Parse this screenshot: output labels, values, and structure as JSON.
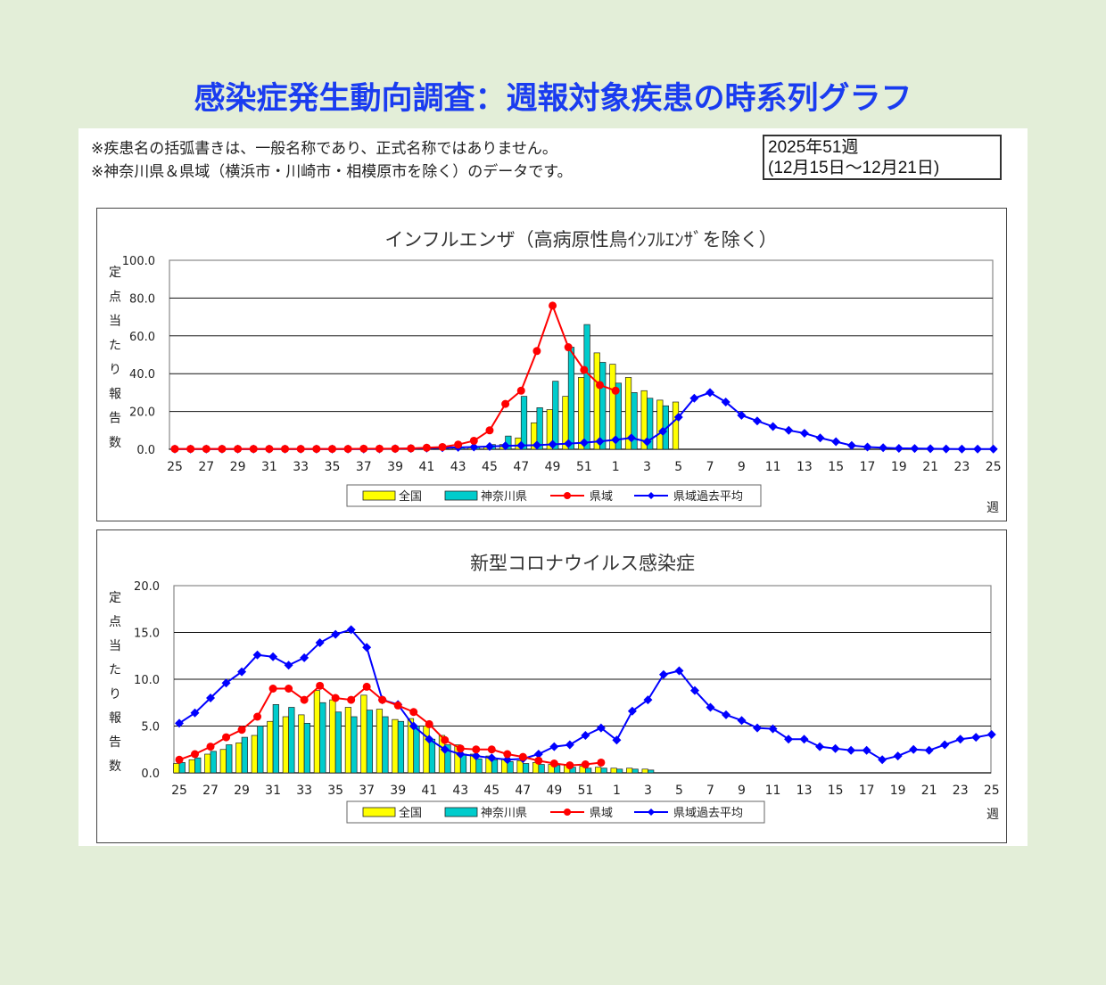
{
  "page": {
    "title": "感染症発生動向調査：週報対象疾患の時系列グラフ",
    "note1": "※疾患名の括弧書きは、一般名称であり、正式名称ではありません。",
    "note2": "※神奈川県＆県域（横浜市・川崎市・相模原市を除く）のデータです。",
    "week_line1": "2025年51週",
    "week_line2": "(12月15日～12月21日)"
  },
  "colors": {
    "zenkoku": "#ffff00",
    "kanagawa": "#00cccc",
    "kenniki": "#ff0000",
    "kako": "#0000ff"
  },
  "chart_data": [
    {
      "type": "bar",
      "title": "インフルエンザ（高病原性鳥ｲﾝﾌﾙｴﾝｻﾞを除く）",
      "ylabel": "定点当たり報告数",
      "xlabel": "週",
      "ylim": [
        0,
        100
      ],
      "yticks": [
        "100.0",
        "80.0",
        "60.0",
        "40.0",
        "20.0",
        "0.0"
      ],
      "xticks": [
        "25",
        "27",
        "29",
        "31",
        "33",
        "35",
        "37",
        "39",
        "41",
        "43",
        "45",
        "47",
        "49",
        "51",
        "1",
        "3",
        "5",
        "7",
        "9",
        "11",
        "13",
        "15",
        "17",
        "19",
        "21",
        "23",
        "25"
      ],
      "grid": true,
      "legend_position": "bottom",
      "series": [
        {
          "name": "全国",
          "kind": "bar",
          "values": [
            0.1,
            0.1,
            0.1,
            0.1,
            0.1,
            0.1,
            0.1,
            0.1,
            0.1,
            0.1,
            0.1,
            0.1,
            0.1,
            0.1,
            0.1,
            0.2,
            0.2,
            0.3,
            0.5,
            0.8,
            1.2,
            2.5,
            6.0,
            14.0,
            21.0,
            28.0,
            38.0,
            51.0,
            45.0,
            38.0,
            31.0,
            26.0,
            25.0
          ]
        },
        {
          "name": "神奈川県",
          "kind": "bar",
          "values": [
            0.1,
            0.1,
            0.1,
            0.1,
            0.1,
            0.1,
            0.1,
            0.1,
            0.1,
            0.1,
            0.1,
            0.1,
            0.1,
            0.1,
            0.1,
            0.2,
            0.2,
            0.4,
            0.8,
            1.5,
            2.5,
            7.0,
            28.0,
            22.0,
            36.0,
            54.0,
            66.0,
            46.0,
            35.0,
            30.0,
            27.0,
            23.0
          ]
        },
        {
          "name": "県域",
          "kind": "line",
          "values": [
            0.2,
            0.2,
            0.2,
            0.2,
            0.2,
            0.2,
            0.2,
            0.2,
            0.2,
            0.2,
            0.2,
            0.2,
            0.3,
            0.3,
            0.3,
            0.5,
            0.8,
            1.2,
            2.5,
            4.5,
            10.0,
            24.0,
            31.0,
            52.0,
            76.0,
            54.0,
            42.0,
            34.0,
            31.0
          ]
        },
        {
          "name": "県域過去平均",
          "kind": "line",
          "values": [
            0.1,
            0.1,
            0.1,
            0.1,
            0.1,
            0.1,
            0.1,
            0.1,
            0.1,
            0.1,
            0.1,
            0.1,
            0.1,
            0.2,
            0.3,
            0.4,
            0.6,
            0.8,
            1.0,
            1.2,
            1.5,
            1.8,
            2.0,
            2.2,
            2.6,
            3.0,
            3.5,
            4.2,
            5.0,
            6.0,
            4.0,
            9.5,
            17.0,
            27.0,
            30.0,
            25.0,
            18.0,
            15.0,
            12.0,
            10.0,
            8.5,
            6.0,
            4.0,
            2.0,
            1.2,
            0.8,
            0.5,
            0.4,
            0.3,
            0.2,
            0.1,
            0.1,
            0.1
          ]
        }
      ]
    },
    {
      "type": "bar",
      "title": "新型コロナウイルス感染症",
      "ylabel": "定点当たり報告数",
      "xlabel": "週",
      "ylim": [
        0,
        20
      ],
      "yticks": [
        "20.0",
        "15.0",
        "10.0",
        "5.0",
        "0.0"
      ],
      "xticks": [
        "25",
        "27",
        "29",
        "31",
        "33",
        "35",
        "37",
        "39",
        "41",
        "43",
        "45",
        "47",
        "49",
        "51",
        "1",
        "3",
        "5",
        "7",
        "9",
        "11",
        "13",
        "15",
        "17",
        "19",
        "21",
        "23",
        "25"
      ],
      "grid": true,
      "legend_position": "bottom",
      "series": [
        {
          "name": "全国",
          "kind": "bar",
          "values": [
            1.0,
            1.4,
            2.0,
            2.5,
            3.2,
            4.0,
            5.5,
            6.0,
            6.2,
            8.8,
            7.8,
            7.0,
            8.3,
            6.8,
            5.7,
            5.8,
            5.0,
            4.0,
            3.0,
            2.0,
            1.8,
            1.5,
            1.3,
            1.1,
            0.9,
            0.8,
            0.7,
            0.6,
            0.5,
            0.5,
            0.4
          ]
        },
        {
          "name": "神奈川県",
          "kind": "bar",
          "values": [
            1.1,
            1.6,
            2.3,
            3.0,
            3.8,
            5.0,
            7.3,
            7.0,
            5.3,
            7.5,
            6.5,
            6.0,
            6.7,
            6.0,
            5.5,
            5.0,
            3.6,
            3.0,
            2.0,
            1.5,
            1.4,
            1.2,
            1.0,
            0.9,
            0.8,
            0.6,
            0.5,
            0.5,
            0.4,
            0.4,
            0.3
          ]
        },
        {
          "name": "県域",
          "kind": "line",
          "values": [
            1.4,
            2.0,
            2.8,
            3.8,
            4.6,
            6.0,
            9.0,
            9.0,
            7.8,
            9.3,
            8.0,
            7.8,
            9.2,
            7.8,
            7.2,
            6.5,
            5.2,
            3.5,
            2.6,
            2.5,
            2.5,
            2.0,
            1.7,
            1.3,
            1.0,
            0.8,
            0.9,
            1.1
          ]
        },
        {
          "name": "県域過去平均",
          "kind": "line",
          "values": [
            5.3,
            6.4,
            8.0,
            9.6,
            10.8,
            12.6,
            12.4,
            11.5,
            12.3,
            13.9,
            14.8,
            15.3,
            13.4,
            7.8,
            7.3,
            5.0,
            3.6,
            2.5,
            2.0,
            1.8,
            1.6,
            1.4,
            1.5,
            2.0,
            2.8,
            3.0,
            4.0,
            4.8,
            3.5,
            6.6,
            7.8,
            10.5,
            10.9,
            8.8,
            7.0,
            6.2,
            5.6,
            4.8,
            4.7,
            3.6,
            3.6,
            2.8,
            2.6,
            2.4,
            2.4,
            1.4,
            1.8,
            2.5,
            2.4,
            3.0,
            3.6,
            3.8,
            4.1
          ]
        }
      ]
    }
  ]
}
